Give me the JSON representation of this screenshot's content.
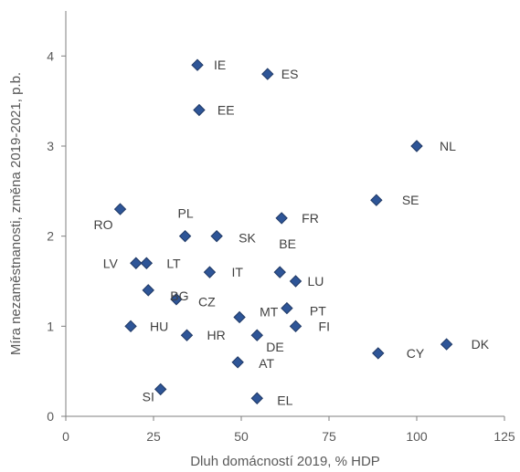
{
  "chart_data": {
    "type": "scatter",
    "title": "",
    "xlabel": "Dluh domácností 2019, % HDP",
    "ylabel": "Míra nezaměstnanosti, změna 2019-2021, p.b.",
    "xlim": [
      0,
      125
    ],
    "ylim": [
      0,
      4.5
    ],
    "x_ticks": [
      "0",
      "25",
      "50",
      "75",
      "100",
      "125"
    ],
    "y_ticks": [
      "0",
      "1",
      "2",
      "3",
      "4"
    ],
    "grid": false,
    "legend": "none",
    "marker_color": "#2e5597",
    "points": [
      {
        "label": "IE",
        "x": 37.5,
        "y": 3.9
      },
      {
        "label": "ES",
        "x": 57.5,
        "y": 3.8
      },
      {
        "label": "EE",
        "x": 38,
        "y": 3.4
      },
      {
        "label": "NL",
        "x": 100,
        "y": 3.0
      },
      {
        "label": "SE",
        "x": 88.5,
        "y": 2.4
      },
      {
        "label": "RO",
        "x": 15.5,
        "y": 2.3
      },
      {
        "label": "FR",
        "x": 61.5,
        "y": 2.2
      },
      {
        "label": "PL",
        "x": 34,
        "y": 2.0
      },
      {
        "label": "SK",
        "x": 43,
        "y": 2.0
      },
      {
        "label": "LV",
        "x": 20,
        "y": 1.7
      },
      {
        "label": "LT",
        "x": 23,
        "y": 1.7
      },
      {
        "label": "IT",
        "x": 41,
        "y": 1.6
      },
      {
        "label": "BE",
        "x": 61,
        "y": 1.6
      },
      {
        "label": "LU",
        "x": 65.5,
        "y": 1.5
      },
      {
        "label": "BG",
        "x": 23.5,
        "y": 1.4
      },
      {
        "label": "CZ",
        "x": 31.5,
        "y": 1.3
      },
      {
        "label": "PT",
        "x": 63,
        "y": 1.2
      },
      {
        "label": "MT",
        "x": 49.5,
        "y": 1.1
      },
      {
        "label": "HU",
        "x": 18.5,
        "y": 1.0
      },
      {
        "label": "FI",
        "x": 65.5,
        "y": 1.0
      },
      {
        "label": "HR",
        "x": 34.5,
        "y": 0.9
      },
      {
        "label": "DE",
        "x": 54.5,
        "y": 0.9
      },
      {
        "label": "DK",
        "x": 108.5,
        "y": 0.8
      },
      {
        "label": "CY",
        "x": 89,
        "y": 0.7
      },
      {
        "label": "AT",
        "x": 49,
        "y": 0.6
      },
      {
        "label": "SI",
        "x": 27,
        "y": 0.3
      },
      {
        "label": "EL",
        "x": 54.5,
        "y": 0.2
      }
    ]
  }
}
